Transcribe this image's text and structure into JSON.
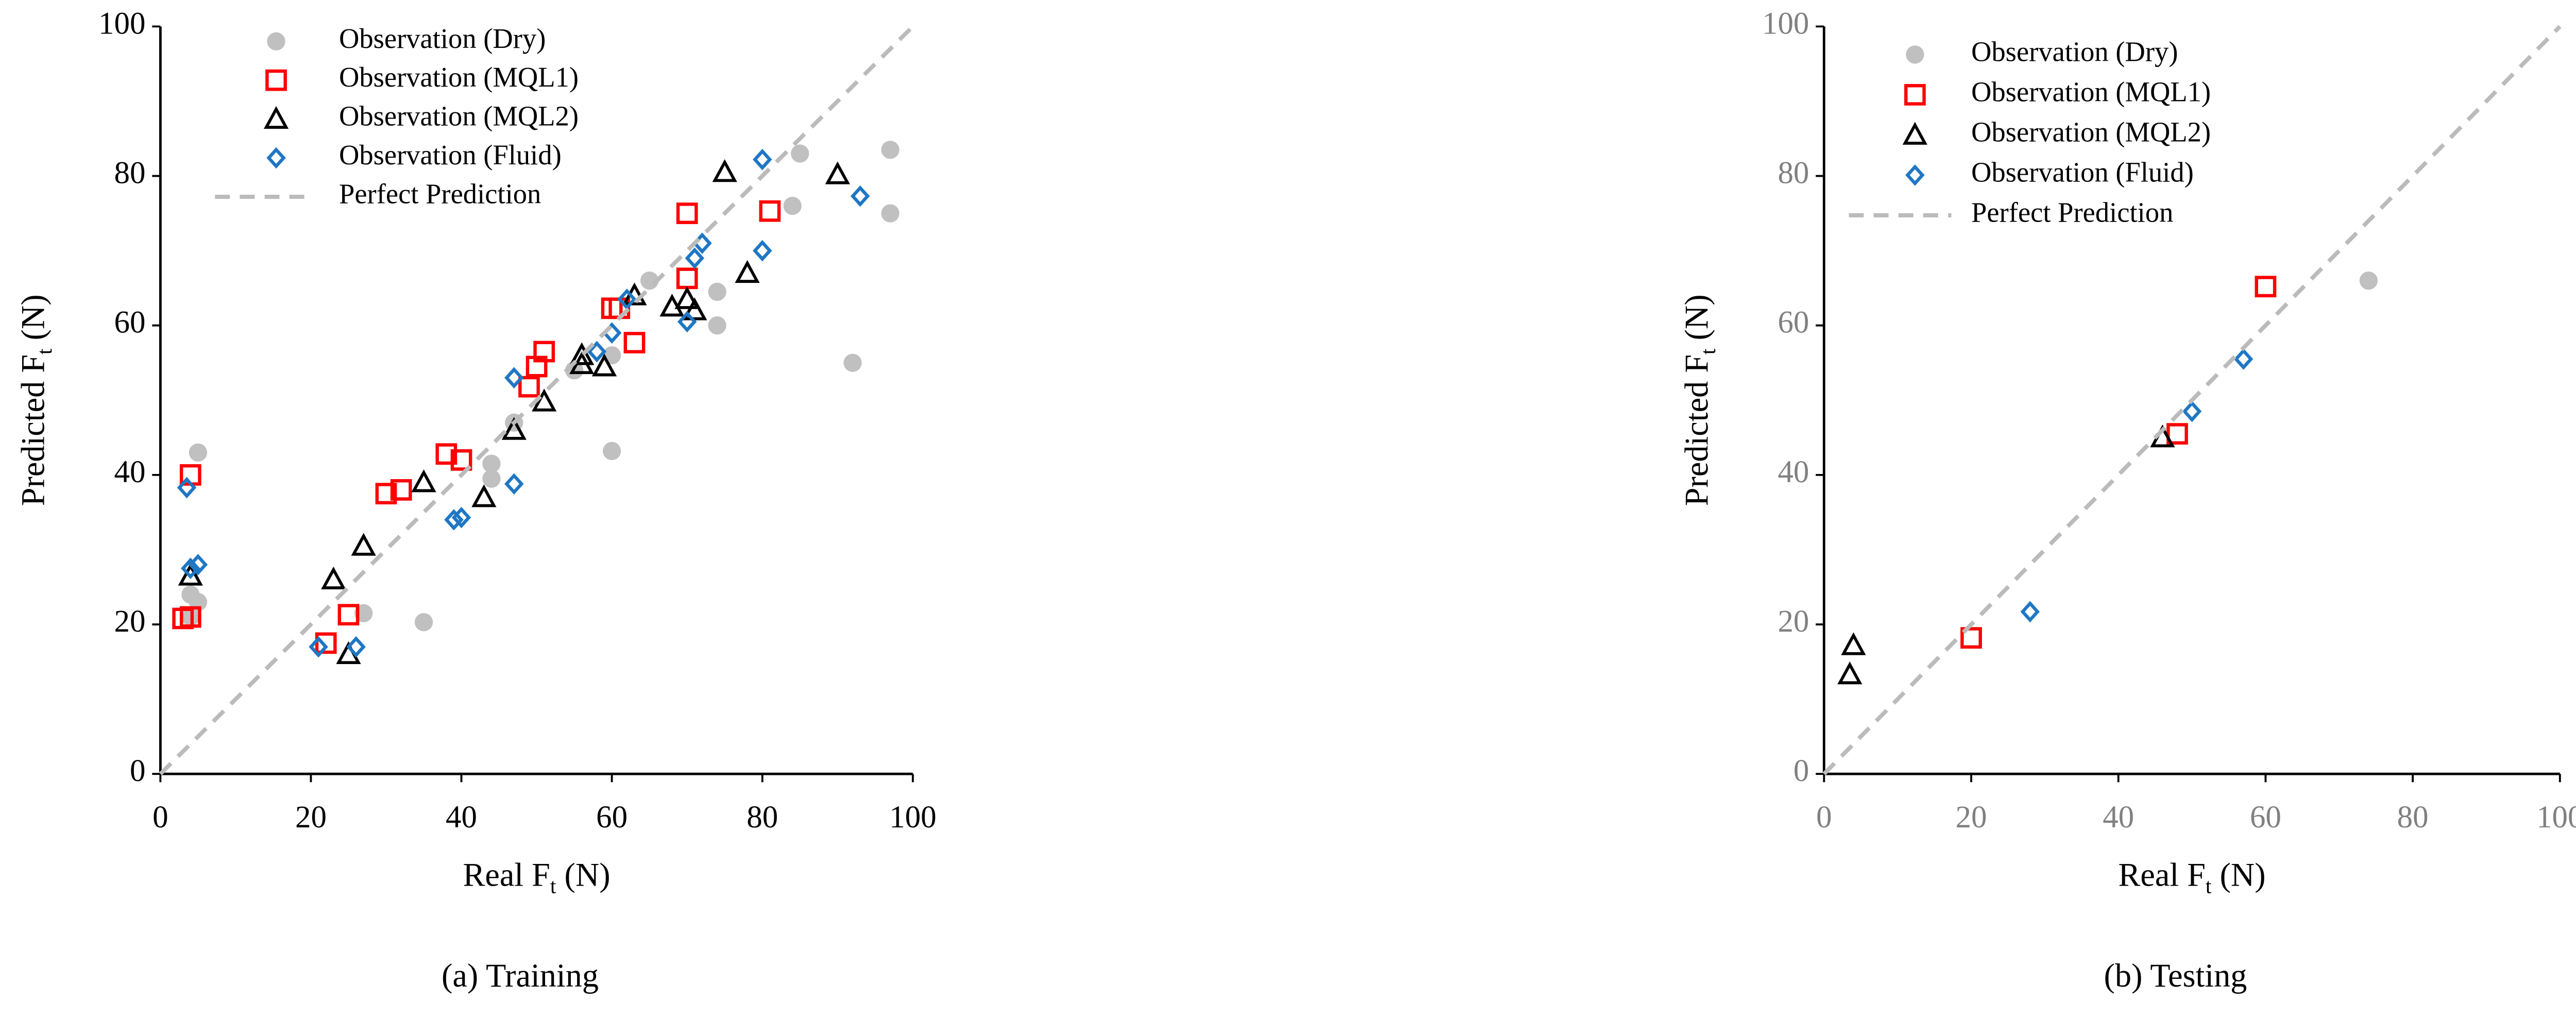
{
  "chart_data": [
    {
      "type": "scatter",
      "caption": "(a) Training",
      "xlabel_parts": [
        "Real F",
        "t",
        "(N)"
      ],
      "ylabel_parts": [
        "Predicted F",
        "t",
        "(N)"
      ],
      "xlim": [
        0,
        100
      ],
      "ylim": [
        0,
        100
      ],
      "xticks": [
        0,
        20,
        40,
        60,
        80,
        100
      ],
      "yticks": [
        0,
        20,
        40,
        60,
        80,
        100
      ],
      "tick_color": "#000000",
      "legend": "upper left",
      "series": [
        {
          "name": "Observation (Dry)",
          "color": "#c0c0c0",
          "marker": "circle",
          "x": [
            5,
            4,
            5,
            27,
            35,
            44,
            44,
            55,
            60,
            60,
            65,
            74,
            74,
            84,
            85,
            92,
            97,
            97,
            47,
            4
          ],
          "values": [
            43,
            24,
            23,
            21.5,
            20.3,
            41.5,
            39.5,
            54,
            56,
            43.2,
            66,
            64.5,
            60,
            76,
            83,
            55,
            83.5,
            75,
            47,
            21
          ]
        },
        {
          "name": "Observation (MQL1)",
          "color": "#ff0000",
          "marker": "square",
          "x": [
            4,
            3,
            4,
            22,
            25,
            30,
            32,
            38,
            40,
            49,
            50,
            51,
            60,
            61,
            63,
            70,
            70,
            81
          ],
          "values": [
            40,
            20.8,
            21,
            17.5,
            21.3,
            37.5,
            38,
            42.8,
            42,
            51.8,
            54.5,
            56.5,
            62.3,
            62.3,
            57.7,
            75,
            66.3,
            75.3
          ]
        },
        {
          "name": "Observation (MQL2)",
          "color": "#000000",
          "marker": "triangle",
          "x": [
            4,
            23,
            25,
            27,
            35,
            43,
            47,
            51,
            56,
            56,
            59,
            63,
            68,
            70,
            71,
            75,
            78,
            90
          ],
          "values": [
            26.5,
            26,
            16,
            30.5,
            39,
            37,
            46,
            49.8,
            56,
            54.8,
            54.5,
            64,
            62.5,
            63.5,
            62,
            80.5,
            67,
            80.2
          ]
        },
        {
          "name": "Observation (Fluid)",
          "color": "#1f77c4",
          "marker": "diamond",
          "x": [
            3.5,
            4,
            5,
            21,
            26,
            39,
            40,
            47,
            47,
            58,
            60,
            62,
            70,
            71,
            72,
            80,
            80,
            93
          ],
          "values": [
            38.3,
            27.5,
            28,
            17,
            17,
            34,
            34.3,
            38.8,
            53,
            56.5,
            59,
            63.5,
            60.5,
            69,
            71,
            82.2,
            70,
            77.3
          ]
        },
        {
          "name": "Perfect Prediction",
          "color": "#bbbbbb",
          "marker": "dashed-line",
          "x": [
            0,
            100
          ],
          "values": [
            0,
            100
          ]
        }
      ]
    },
    {
      "type": "scatter",
      "caption": "(b) Testing",
      "xlabel_parts": [
        "Real F",
        "t",
        "(N)"
      ],
      "ylabel_parts": [
        "Predicted F",
        "t",
        "(N)"
      ],
      "xlim": [
        0,
        100
      ],
      "ylim": [
        0,
        100
      ],
      "xticks": [
        0,
        20,
        40,
        60,
        80,
        100
      ],
      "yticks": [
        0,
        20,
        40,
        60,
        80,
        100
      ],
      "tick_color": "#808080",
      "legend": "upper left",
      "series": [
        {
          "name": "Observation (Dry)",
          "color": "#c0c0c0",
          "marker": "circle",
          "x": [
            74
          ],
          "values": [
            66
          ]
        },
        {
          "name": "Observation (MQL1)",
          "color": "#ff0000",
          "marker": "square",
          "x": [
            20,
            48,
            60
          ],
          "values": [
            18.2,
            45.5,
            65.2
          ]
        },
        {
          "name": "Observation (MQL2)",
          "color": "#000000",
          "marker": "triangle",
          "x": [
            3.5,
            4,
            46
          ],
          "values": [
            13.3,
            17.2,
            45
          ]
        },
        {
          "name": "Observation (Fluid)",
          "color": "#1f77c4",
          "marker": "diamond",
          "x": [
            28,
            50,
            57
          ],
          "values": [
            21.7,
            48.5,
            55.5
          ]
        },
        {
          "name": "Perfect Prediction",
          "color": "#bbbbbb",
          "marker": "dashed-line",
          "x": [
            0,
            100
          ],
          "values": [
            0,
            100
          ]
        }
      ]
    }
  ]
}
